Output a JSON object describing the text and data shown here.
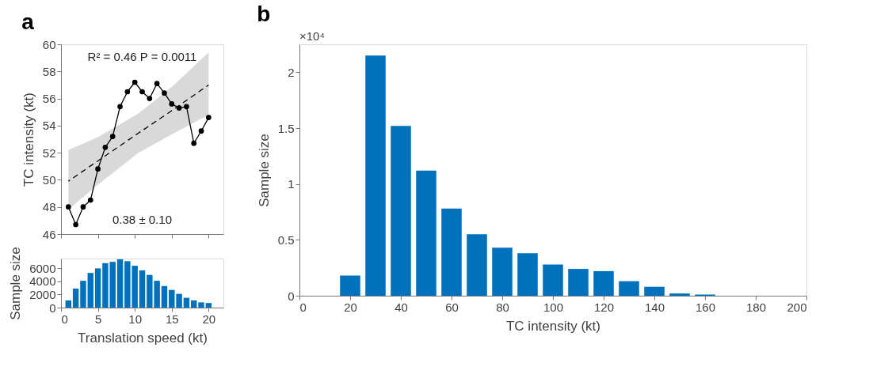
{
  "chart_data": [
    {
      "type": "line",
      "title": "a",
      "ylabel": "TC intensity (kt)",
      "x": [
        1,
        2,
        3,
        4,
        5,
        6,
        7,
        8,
        9,
        10,
        11,
        12,
        13,
        14,
        15,
        16,
        17,
        18,
        19,
        20
      ],
      "series": [
        {
          "color": "#000000",
          "marker": "circle",
          "line_style": "solid",
          "values": [
            48.0,
            46.7,
            48.0,
            48.5,
            50.8,
            52.4,
            53.2,
            55.4,
            56.5,
            57.2,
            56.5,
            56.0,
            57.1,
            56.4,
            55.6,
            55.3,
            55.4,
            52.7,
            53.6,
            54.6
          ]
        },
        {
          "type": "line",
          "color": "#000000",
          "marker": "none",
          "line_style": "dashed",
          "x": [
            1,
            5,
            10.5,
            15,
            20
          ],
          "values": [
            49.9,
            51.4,
            53.45,
            55.1,
            57.0
          ],
          "lower": [
            47.8,
            49.65,
            52.0,
            53.35,
            54.8
          ],
          "upper": [
            52.2,
            53.15,
            54.9,
            56.85,
            59.4
          ]
        }
      ],
      "xlim": [
        0,
        22
      ],
      "xticks": [
        0,
        5,
        10,
        15,
        20
      ],
      "ylim": [
        46,
        60
      ],
      "yticks": [
        46,
        48,
        50,
        52,
        54,
        56,
        58,
        60
      ],
      "tick_labels": "y",
      "grid": false,
      "legend": false,
      "annotations": [
        "R² = 0.46   P = 0.0011",
        "0.38 ± 0.10"
      ]
    },
    {
      "type": "bar",
      "xlabel": "Translation speed (kt)",
      "ylabel": "Sample size",
      "x": [
        1,
        2,
        3,
        4,
        5,
        6,
        7,
        8,
        9,
        10,
        11,
        12,
        13,
        14,
        15,
        16,
        17,
        18,
        19,
        20
      ],
      "values": [
        1100,
        2900,
        4100,
        5300,
        6000,
        6800,
        7000,
        7400,
        7100,
        6400,
        5700,
        5000,
        4100,
        3300,
        2700,
        2100,
        1500,
        1100,
        800,
        700
      ],
      "color": "#0072bd",
      "xlim": [
        0,
        22
      ],
      "xticks": [
        0,
        5,
        10,
        15,
        20
      ],
      "ylim": [
        0,
        7500
      ],
      "yticks": [
        0,
        2000,
        4000,
        6000
      ],
      "grid": false,
      "legend": false
    },
    {
      "type": "bar",
      "title": "b",
      "xlabel": "TC intensity (kt)",
      "ylabel": "Sample size",
      "x": [
        20,
        30,
        40,
        50,
        60,
        70,
        80,
        90,
        100,
        110,
        120,
        130,
        140,
        150,
        160
      ],
      "values": [
        0.18,
        2.15,
        1.52,
        1.12,
        0.78,
        0.55,
        0.43,
        0.38,
        0.28,
        0.24,
        0.22,
        0.13,
        0.08,
        0.02,
        0.01
      ],
      "color": "#0072bd",
      "xlim": [
        0,
        200
      ],
      "xticks": [
        0,
        20,
        40,
        60,
        80,
        100,
        120,
        140,
        160,
        180,
        200
      ],
      "ylim": [
        0,
        2.25
      ],
      "yticks": [
        0,
        0.5,
        1,
        1.5,
        2
      ],
      "grid": false,
      "legend": false,
      "annotations": [
        "×10⁴"
      ]
    }
  ]
}
